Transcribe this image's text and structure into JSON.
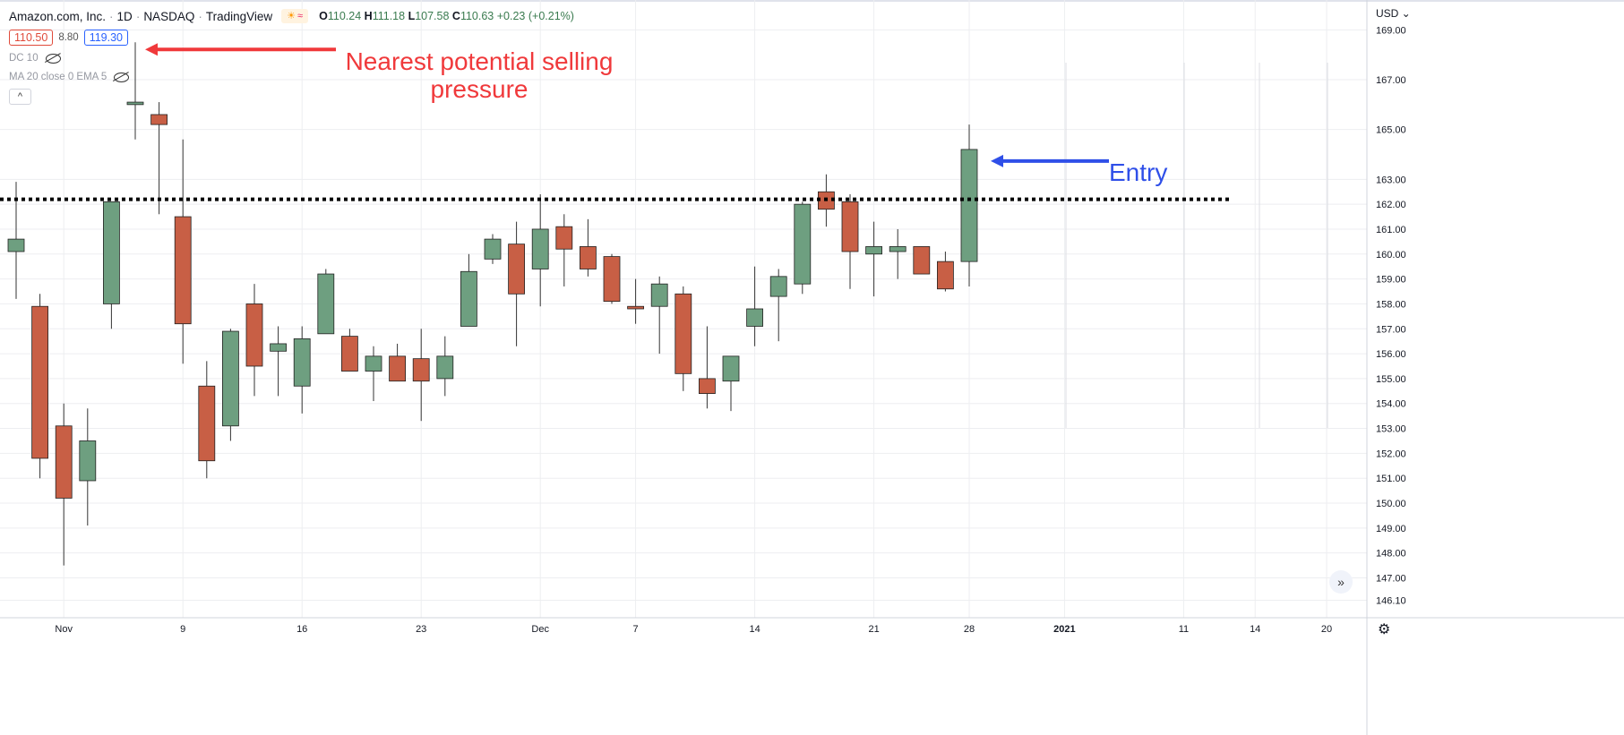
{
  "header": {
    "symbol": "Amazon.com, Inc.",
    "interval": "1D",
    "exchange": "NASDAQ",
    "source": "TradingView",
    "weather_icon": "sun-icon",
    "ohlc": {
      "o_label": "O",
      "o": "110.24",
      "h_label": "H",
      "h": "111.18",
      "l_label": "L",
      "l": "107.58",
      "c_label": "C",
      "c": "110.63",
      "change": "+0.23 (+0.21%)"
    }
  },
  "prices": {
    "sell": "110.50",
    "spread": "8.80",
    "buy": "119.30"
  },
  "indicators": [
    {
      "label": "DC 10",
      "icon": "eye-off-icon"
    },
    {
      "label": "MA 20 close 0 EMA 5",
      "icon": "eye-off-icon"
    }
  ],
  "currency": "USD",
  "annotations": {
    "selling": "Nearest potential selling pressure",
    "entry": "Entry"
  },
  "colors": {
    "up": "#6e9f80",
    "down": "#c85f45",
    "grid": "#edeef1",
    "red_arrow": "#f0393b",
    "blue_arrow": "#2f4fe8",
    "level_line": "#000000"
  },
  "chart_data": {
    "type": "candlestick",
    "ylim": [
      145.4,
      170.2
    ],
    "y_ticks": [
      "169.00",
      "167.00",
      "165.00",
      "163.00",
      "162.00",
      "161.00",
      "160.00",
      "159.00",
      "158.00",
      "157.00",
      "156.00",
      "155.00",
      "154.00",
      "153.00",
      "152.00",
      "151.00",
      "150.00",
      "149.00",
      "148.00",
      "147.00",
      "146.10"
    ],
    "x_ticks": [
      {
        "label": "Nov",
        "index": 2
      },
      {
        "label": "9",
        "index": 7
      },
      {
        "label": "16",
        "index": 12
      },
      {
        "label": "23",
        "index": 17
      },
      {
        "label": "Dec",
        "index": 22
      },
      {
        "label": "7",
        "index": 26
      },
      {
        "label": "14",
        "index": 31
      },
      {
        "label": "21",
        "index": 36
      },
      {
        "label": "28",
        "index": 40
      },
      {
        "label": "2021",
        "index": 44
      },
      {
        "label": "11",
        "index": 49
      },
      {
        "label": "14",
        "index": 52
      },
      {
        "label": "20",
        "index": 55
      }
    ],
    "level": 162.2,
    "candles": [
      {
        "o": 160.1,
        "h": 162.9,
        "l": 158.2,
        "c": 160.6
      },
      {
        "o": 157.9,
        "h": 158.4,
        "l": 151.0,
        "c": 151.8
      },
      {
        "o": 153.1,
        "h": 154.0,
        "l": 147.5,
        "c": 150.2
      },
      {
        "o": 150.9,
        "h": 153.8,
        "l": 149.1,
        "c": 152.5
      },
      {
        "o": 158.0,
        "h": 162.1,
        "l": 157.0,
        "c": 162.1
      },
      {
        "o": 166.0,
        "h": 168.5,
        "l": 164.6,
        "c": 166.1
      },
      {
        "o": 165.6,
        "h": 166.1,
        "l": 161.6,
        "c": 165.2
      },
      {
        "o": 161.5,
        "h": 164.6,
        "l": 155.6,
        "c": 157.2
      },
      {
        "o": 154.7,
        "h": 155.7,
        "l": 151.0,
        "c": 151.7
      },
      {
        "o": 153.1,
        "h": 157.0,
        "l": 152.5,
        "c": 156.9
      },
      {
        "o": 158.0,
        "h": 158.8,
        "l": 154.3,
        "c": 155.5
      },
      {
        "o": 156.1,
        "h": 157.1,
        "l": 154.3,
        "c": 156.4
      },
      {
        "o": 154.7,
        "h": 157.1,
        "l": 153.6,
        "c": 156.6
      },
      {
        "o": 156.8,
        "h": 159.4,
        "l": 156.8,
        "c": 159.2
      },
      {
        "o": 156.7,
        "h": 157.0,
        "l": 155.3,
        "c": 155.3
      },
      {
        "o": 155.3,
        "h": 156.3,
        "l": 154.1,
        "c": 155.9
      },
      {
        "o": 155.9,
        "h": 156.4,
        "l": 154.9,
        "c": 154.9
      },
      {
        "o": 155.8,
        "h": 157.0,
        "l": 153.3,
        "c": 154.9
      },
      {
        "o": 155.0,
        "h": 156.7,
        "l": 154.3,
        "c": 155.9
      },
      {
        "o": 157.1,
        "h": 160.0,
        "l": 157.1,
        "c": 159.3
      },
      {
        "o": 159.8,
        "h": 160.8,
        "l": 159.6,
        "c": 160.6
      },
      {
        "o": 160.4,
        "h": 161.3,
        "l": 156.3,
        "c": 158.4
      },
      {
        "o": 159.4,
        "h": 162.4,
        "l": 157.9,
        "c": 161.0
      },
      {
        "o": 161.1,
        "h": 161.6,
        "l": 158.7,
        "c": 160.2
      },
      {
        "o": 160.3,
        "h": 161.4,
        "l": 159.1,
        "c": 159.4
      },
      {
        "o": 159.9,
        "h": 160.0,
        "l": 158.0,
        "c": 158.1
      },
      {
        "o": 157.9,
        "h": 159.0,
        "l": 157.2,
        "c": 157.8
      },
      {
        "o": 157.9,
        "h": 159.1,
        "l": 156.0,
        "c": 158.8
      },
      {
        "o": 158.4,
        "h": 158.7,
        "l": 154.5,
        "c": 155.2
      },
      {
        "o": 155.0,
        "h": 157.1,
        "l": 153.8,
        "c": 154.4
      },
      {
        "o": 154.9,
        "h": 155.9,
        "l": 153.7,
        "c": 155.9
      },
      {
        "o": 157.1,
        "h": 159.5,
        "l": 156.3,
        "c": 157.8
      },
      {
        "o": 158.3,
        "h": 159.4,
        "l": 156.5,
        "c": 159.1
      },
      {
        "o": 158.8,
        "h": 162.1,
        "l": 158.4,
        "c": 162.0
      },
      {
        "o": 162.5,
        "h": 163.2,
        "l": 161.1,
        "c": 161.8
      },
      {
        "o": 162.1,
        "h": 162.4,
        "l": 158.6,
        "c": 160.1
      },
      {
        "o": 160.0,
        "h": 161.3,
        "l": 158.3,
        "c": 160.3
      },
      {
        "o": 160.1,
        "h": 161.0,
        "l": 159.0,
        "c": 160.3
      },
      {
        "o": 160.3,
        "h": 160.3,
        "l": 159.2,
        "c": 159.2
      },
      {
        "o": 159.7,
        "h": 160.1,
        "l": 158.5,
        "c": 158.6
      },
      {
        "o": 159.7,
        "h": 165.2,
        "l": 158.7,
        "c": 164.2
      }
    ]
  }
}
